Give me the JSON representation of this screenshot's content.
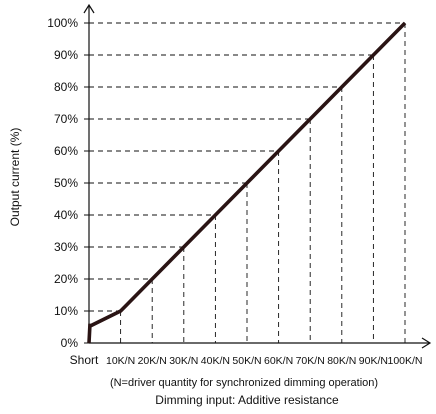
{
  "chart_data": {
    "type": "line",
    "ylabel": "Output current (%)",
    "xlabel": "Dimming input: Additive resistance",
    "note": "(N=driver quantity for synchronized dimming operation)",
    "categories": [
      "Short",
      "10K/N",
      "20K/N",
      "30K/N",
      "40K/N",
      "50K/N",
      "60K/N",
      "70K/N",
      "80K/N",
      "90K/N",
      "100K/N"
    ],
    "y_ticks": [
      "0%",
      "10%",
      "20%",
      "30%",
      "40%",
      "50%",
      "60%",
      "70%",
      "80%",
      "90%",
      "100%"
    ],
    "ylim": [
      0,
      100
    ],
    "grid": "dashed guide lines to each category",
    "series": [
      {
        "color": "#2a1414",
        "x": [
          0,
          0.3,
          0.45,
          0.75,
          10,
          20,
          30,
          40,
          50,
          60,
          70,
          80,
          90,
          100
        ],
        "y": [
          0,
          5.5,
          5.5,
          5.5,
          10,
          20,
          30,
          40,
          50,
          60,
          70,
          80,
          90,
          100
        ]
      }
    ]
  }
}
